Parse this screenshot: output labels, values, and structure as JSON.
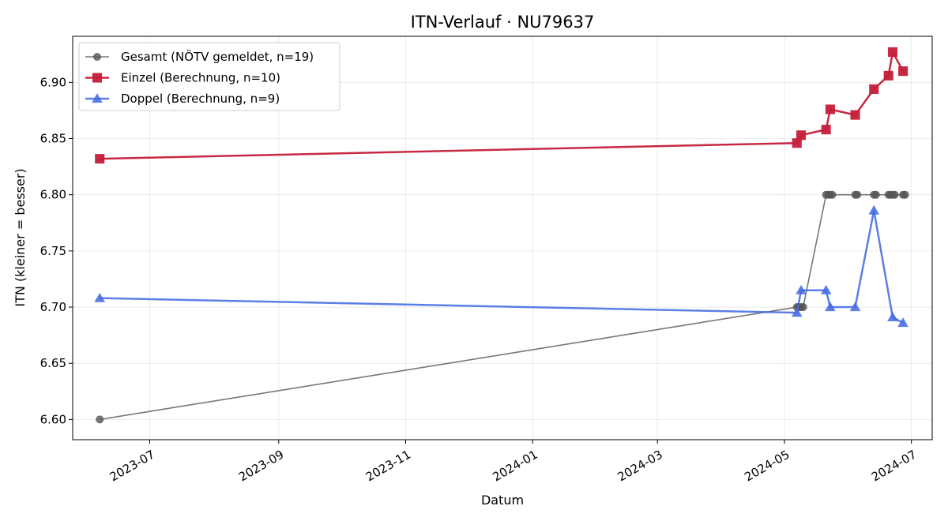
{
  "chart_data": {
    "type": "line",
    "title": "ITN-Verlauf · NU79637",
    "xlabel": "Datum",
    "ylabel": "ITN  (kleiner = besser)",
    "x_ticks": [
      "2023-07",
      "2023-09",
      "2023-11",
      "2024-01",
      "2024-03",
      "2024-05",
      "2024-07"
    ],
    "x_tick_dates": [
      "2023-07-01",
      "2023-09-01",
      "2023-11-01",
      "2024-01-01",
      "2024-03-01",
      "2024-05-01",
      "2024-07-01"
    ],
    "xlim": [
      "2023-05-25",
      "2024-07-11"
    ],
    "y_ticks": [
      "6.60",
      "6.65",
      "6.70",
      "6.75",
      "6.80",
      "6.85",
      "6.90"
    ],
    "y_tick_values": [
      6.6,
      6.65,
      6.7,
      6.75,
      6.8,
      6.85,
      6.9
    ],
    "ylim": [
      6.582,
      6.941
    ],
    "grid": true,
    "legend_position": "top-left",
    "series": [
      {
        "name": "Gesamt (NÖTV gemeldet, n=19)",
        "color": "#555555",
        "marker": "circle",
        "line_width": 1.6,
        "opacity": 0.8,
        "x": [
          "2023-06-07",
          "2024-05-07",
          "2024-05-08",
          "2024-05-09",
          "2024-05-10",
          "2024-05-21",
          "2024-05-22",
          "2024-05-23",
          "2024-05-24",
          "2024-06-04",
          "2024-06-05",
          "2024-06-13",
          "2024-06-14",
          "2024-06-20",
          "2024-06-21",
          "2024-06-22",
          "2024-06-23",
          "2024-06-27",
          "2024-06-28"
        ],
        "y": [
          6.6,
          6.7,
          6.7,
          6.7,
          6.7,
          6.8,
          6.8,
          6.8,
          6.8,
          6.8,
          6.8,
          6.8,
          6.8,
          6.8,
          6.8,
          6.8,
          6.8,
          6.8,
          6.8
        ]
      },
      {
        "name": "Einzel (Berechnung, n=10)",
        "color": "#c41e3a",
        "marker": "square",
        "line_width": 2.5,
        "opacity": 0.95,
        "x": [
          "2023-06-07",
          "2024-05-07",
          "2024-05-09",
          "2024-05-21",
          "2024-05-23",
          "2024-06-04",
          "2024-06-13",
          "2024-06-20",
          "2024-06-22",
          "2024-06-27"
        ],
        "y": [
          6.832,
          6.846,
          6.853,
          6.858,
          6.876,
          6.871,
          6.894,
          6.906,
          6.927,
          6.91
        ]
      },
      {
        "name": "Doppel (Berechnung, n=9)",
        "color": "#4169e1",
        "marker": "triangle",
        "line_width": 2.5,
        "opacity": 0.85,
        "x": [
          "2023-06-07",
          "2024-05-07",
          "2024-05-09",
          "2024-05-21",
          "2024-05-23",
          "2024-06-04",
          "2024-06-13",
          "2024-06-22",
          "2024-06-27"
        ],
        "y": [
          6.708,
          6.695,
          6.715,
          6.715,
          6.7,
          6.7,
          6.786,
          6.691,
          6.686
        ]
      }
    ]
  }
}
